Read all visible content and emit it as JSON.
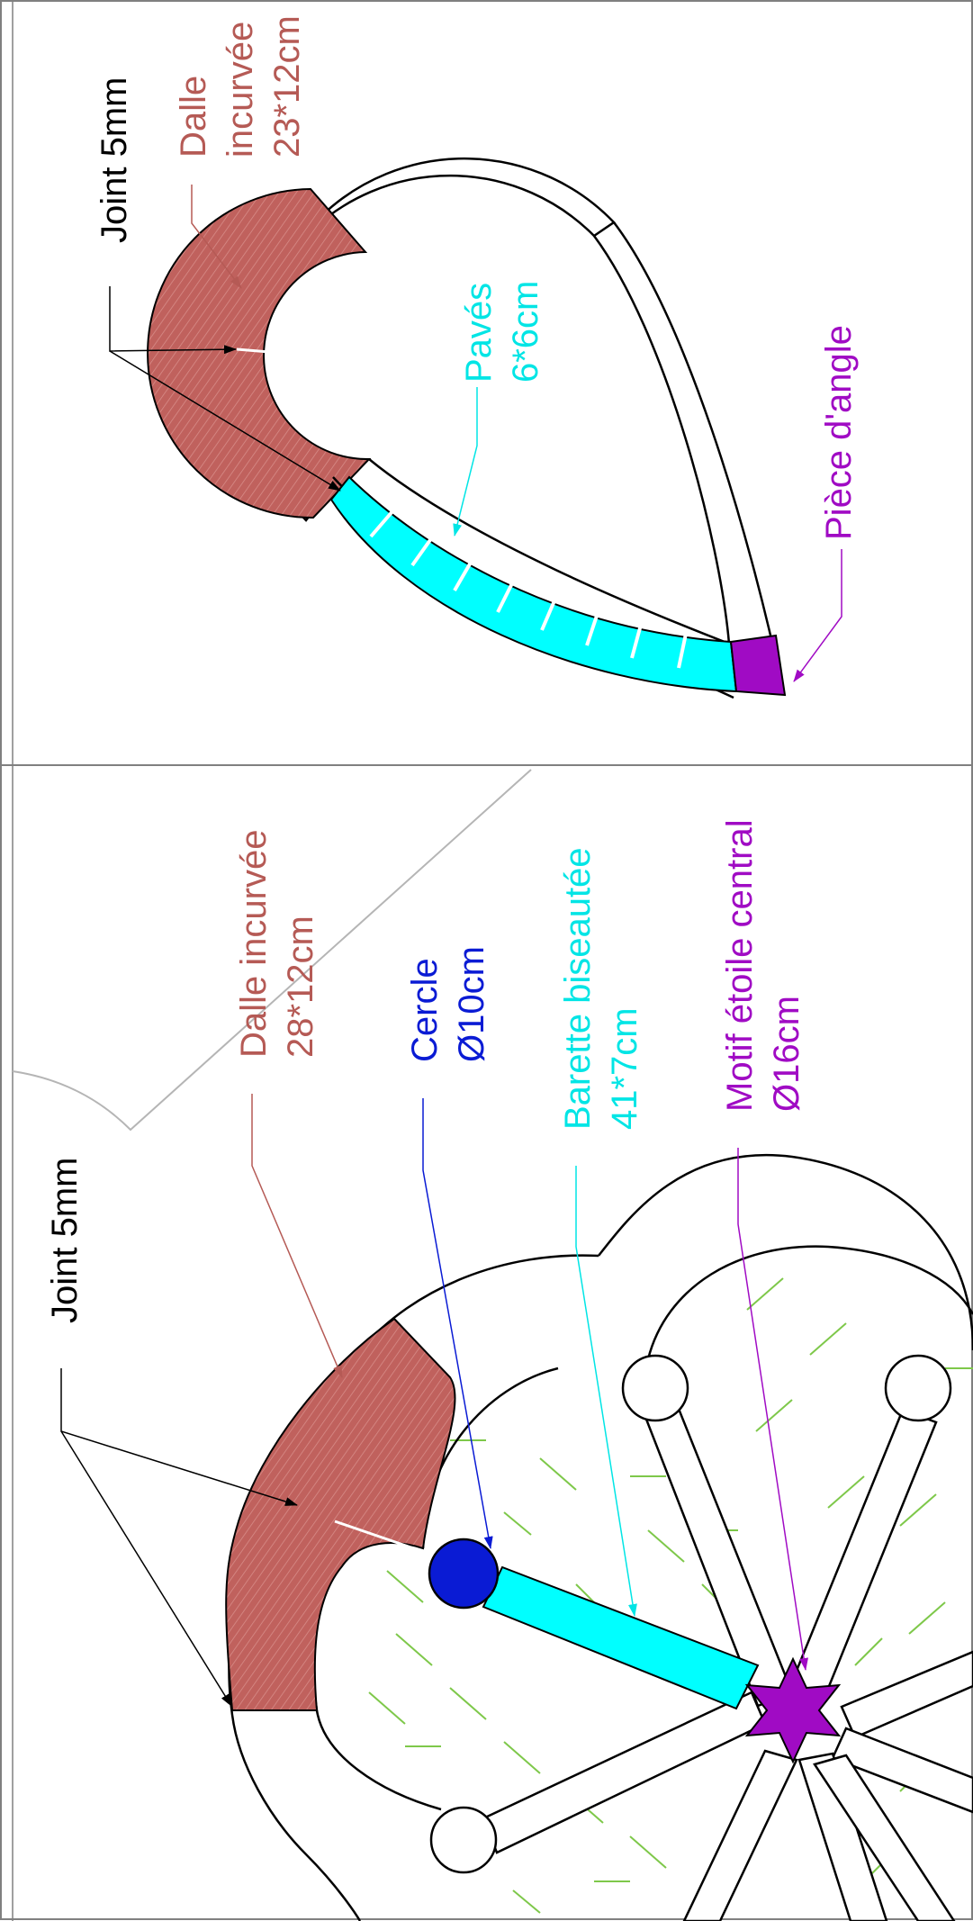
{
  "colors": {
    "brick": "#c0615d",
    "brick_text": "#b55a55",
    "cyan": "#00ffff",
    "blue": "#0a1bd4",
    "purple": "#a00bc4",
    "hatch_green": "#7ec84a",
    "line": "#000000",
    "frame": "#808080"
  },
  "top_panel": {
    "joint_label": "Joint 5mm",
    "slab_label_line1": "Dalle",
    "slab_label_line2": "incurvée",
    "slab_label_line3": "23*12cm",
    "paver_label_line1": "Pavés",
    "paver_label_line2": "6*6cm",
    "corner_label": "Pièce d'angle"
  },
  "bottom_panel": {
    "joint_label": "Joint 5mm",
    "slab_label_line1": "Dalle incurvée",
    "slab_label_line2": "28*12cm",
    "circle_label_line1": "Cercle",
    "circle_label_line2": "Ø10cm",
    "bar_label_line1": "Barette biseautée",
    "bar_label_line2": "41*7cm",
    "star_label_line1": "Motif étoile central",
    "star_label_line2": "Ø16cm"
  }
}
